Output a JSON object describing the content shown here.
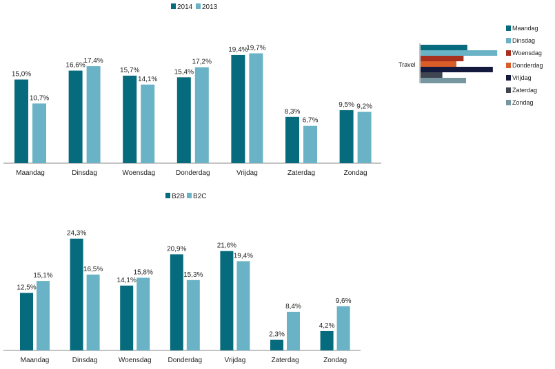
{
  "colors": {
    "dark_teal": "#066b7c",
    "light_teal": "#6ab2c6",
    "axis": "#888888"
  },
  "chart_data": [
    {
      "id": "chart-year",
      "type": "bar",
      "categories": [
        "Maandag",
        "Dinsdag",
        "Woensdag",
        "Donderdag",
        "Vrijdag",
        "Zaterdag",
        "Zondag"
      ],
      "series": [
        {
          "name": "2014",
          "color": "#066b7c",
          "values": [
            15.0,
            16.6,
            15.7,
            15.4,
            19.4,
            8.3,
            9.5
          ],
          "labels": [
            "15,0%",
            "16,6%",
            "15,7%",
            "15,4%",
            "19,4%",
            "8,3%",
            "9,5%"
          ]
        },
        {
          "name": "2013",
          "color": "#6ab2c6",
          "values": [
            10.7,
            17.4,
            14.1,
            17.2,
            19.7,
            6.7,
            9.2
          ],
          "labels": [
            "10,7%",
            "17,4%",
            "14,1%",
            "17,2%",
            "19,7%",
            "6,7%",
            "9,2%"
          ]
        }
      ],
      "ylim": [
        0,
        20.5
      ],
      "legend": "top"
    },
    {
      "id": "chart-travel",
      "type": "bar",
      "orientation": "horizontal",
      "categories": [
        "Travel"
      ],
      "series": [
        {
          "name": "Maandag",
          "color": "#066b7c",
          "values": [
            15.0
          ]
        },
        {
          "name": "Dinsdag",
          "color": "#6ab2c6",
          "values": [
            24.6
          ]
        },
        {
          "name": "Woensdag",
          "color": "#a8301f",
          "values": [
            13.8
          ]
        },
        {
          "name": "Donderdag",
          "color": "#d85d28",
          "values": [
            11.5
          ]
        },
        {
          "name": "Vrijdag",
          "color": "#141a3e",
          "values": [
            23.2
          ]
        },
        {
          "name": "Zaterdag",
          "color": "#3f4652",
          "values": [
            7.0
          ]
        },
        {
          "name": "Zondag",
          "color": "#7797a0",
          "values": [
            14.6
          ]
        }
      ],
      "xlim": [
        0,
        25
      ],
      "legend": "right"
    },
    {
      "id": "chart-segment",
      "type": "bar",
      "categories": [
        "Maandag",
        "Dinsdag",
        "Woensdag",
        "Donderdag",
        "Vrijdag",
        "Zaterdag",
        "Zondag"
      ],
      "series": [
        {
          "name": "B2B",
          "color": "#066b7c",
          "values": [
            12.5,
            24.3,
            14.1,
            20.9,
            21.6,
            2.3,
            4.2
          ],
          "labels": [
            "12,5%",
            "24,3%",
            "14,1%",
            "20,9%",
            "21,6%",
            "2,3%",
            "4,2%"
          ]
        },
        {
          "name": "B2C",
          "color": "#6ab2c6",
          "values": [
            15.1,
            16.5,
            15.8,
            15.3,
            19.4,
            8.4,
            9.6
          ],
          "labels": [
            "15,1%",
            "16,5%",
            "15,8%",
            "15,3%",
            "19,4%",
            "8,4%",
            "9,6%"
          ]
        }
      ],
      "ylim": [
        0,
        25.6
      ],
      "legend": "top"
    }
  ]
}
